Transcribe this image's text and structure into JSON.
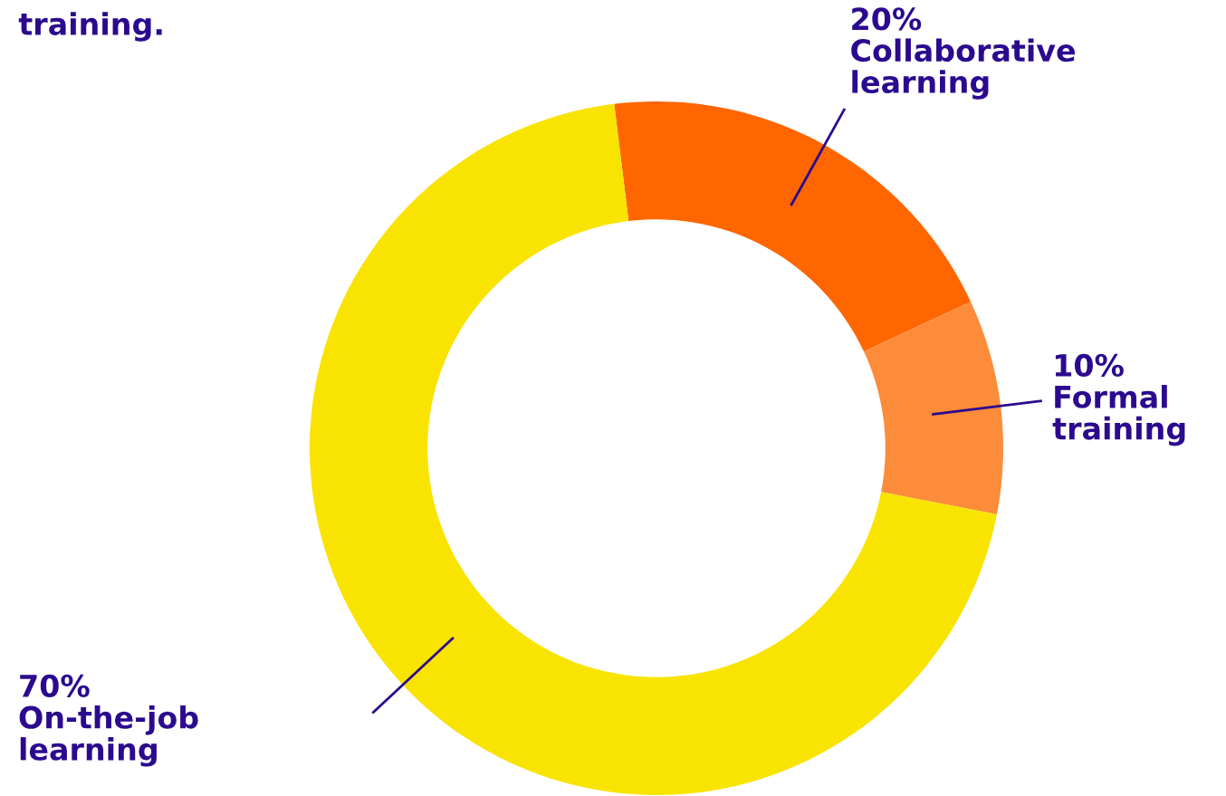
{
  "chart_data": {
    "type": "donut",
    "title": "training.",
    "categories": [
      "Collaborative learning",
      "Formal training",
      "On-the-job learning"
    ],
    "values": [
      20,
      10,
      70
    ],
    "value_labels": [
      "20%",
      "10%",
      "70%"
    ],
    "colors": [
      "#ff6600",
      "#fc8c3a",
      "#f9e300"
    ],
    "legend": false
  }
}
